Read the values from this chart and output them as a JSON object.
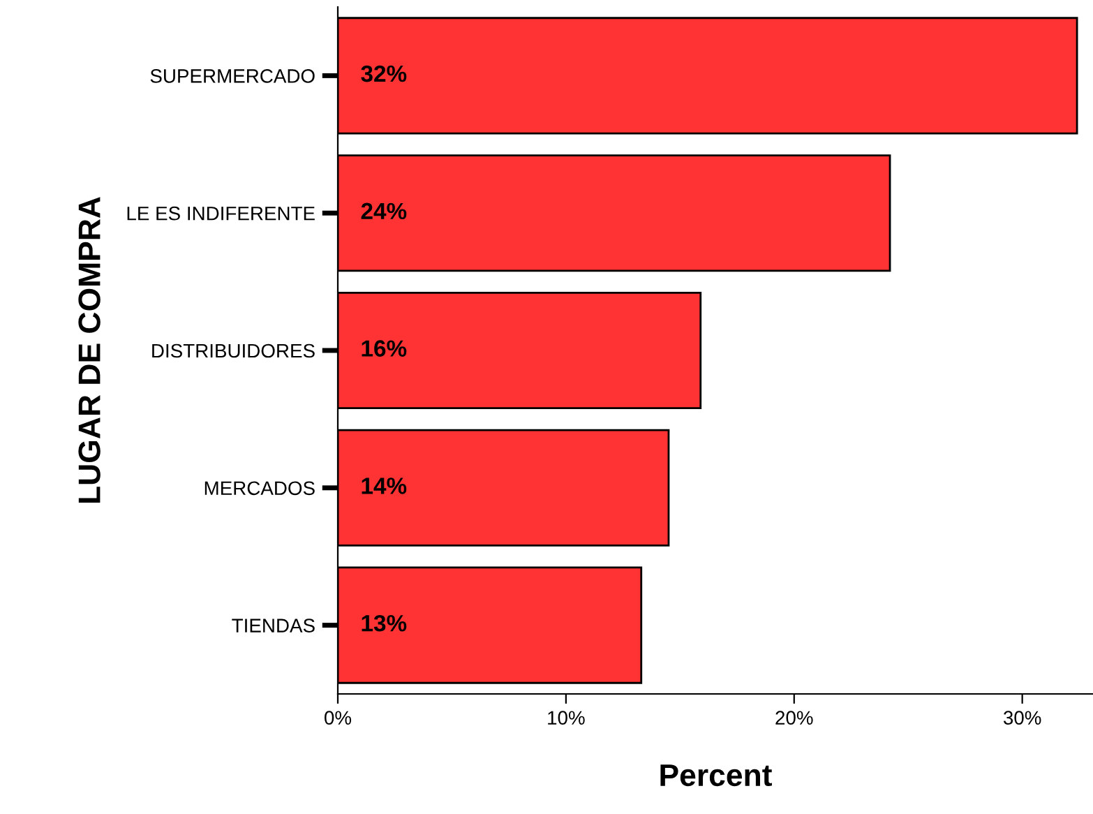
{
  "chart_data": {
    "type": "bar",
    "orientation": "horizontal",
    "xlabel": "Percent",
    "ylabel": "LUGAR DE COMPRA",
    "categories": [
      "SUPERMERCADO",
      "LE ES INDIFERENTE",
      "DISTRIBUIDORES",
      "MERCADOS",
      "TIENDAS"
    ],
    "values": [
      32.4,
      24.2,
      15.9,
      14.5,
      13.3
    ],
    "value_labels": [
      "32%",
      "24%",
      "16%",
      "14%",
      "13%"
    ],
    "color": "#ff3333",
    "xlim": [
      0,
      33.1
    ],
    "xticks": [
      {
        "value": 0,
        "label": "0%"
      },
      {
        "value": 10,
        "label": "10%"
      },
      {
        "value": 20,
        "label": "20%"
      },
      {
        "value": 30,
        "label": "30%"
      }
    ],
    "grid": false,
    "legend": false
  }
}
